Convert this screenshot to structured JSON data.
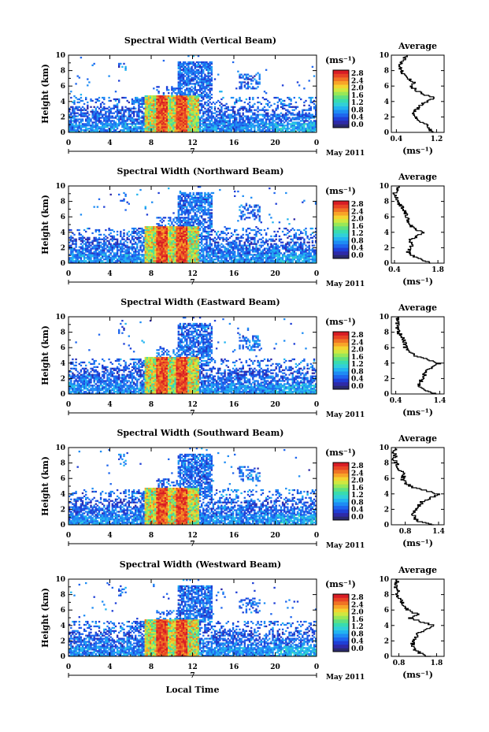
{
  "figure": {
    "x_label": "Local Time",
    "date_label": "May 2011",
    "day_label": "7",
    "height_label": "Height (km)",
    "unit_label": "(ms⁻¹)",
    "avg_title": "Average",
    "avg_unit": "(ms⁻¹)"
  },
  "colorbar": {
    "ticks": [
      "2.8",
      "2.4",
      "2.0",
      "1.6",
      "1.2",
      "0.8",
      "0.4",
      "0.0"
    ],
    "colors": [
      "#2a2a6e",
      "#2e2aa8",
      "#1f3fd6",
      "#1e66ee",
      "#1e8cf4",
      "#22b4f0",
      "#30d0d8",
      "#38dcb0",
      "#60e080",
      "#98e858",
      "#d0e840",
      "#f4d430",
      "#f8a428",
      "#f07424",
      "#e84424",
      "#d81c24"
    ],
    "scale_max": 2.8
  },
  "chart_data": [
    {
      "type": "heatmap",
      "title": "Spectral Width (Vertical Beam)",
      "x_ticks": [
        "0",
        "4",
        "8",
        "12",
        "16",
        "20",
        "0"
      ],
      "xlim": [
        0,
        24
      ],
      "y_ticks": [
        "0",
        "2",
        "4",
        "6",
        "8",
        "10"
      ],
      "ylim": [
        0,
        10
      ],
      "value_range": [
        0.0,
        2.8
      ],
      "average_profile": {
        "x_ticks": [
          "0.4",
          "1.2"
        ],
        "x_tick_values": [
          0.4,
          1.2
        ],
        "xlim": [
          0.3,
          1.35
        ],
        "heights": [
          0,
          0.5,
          1,
          1.5,
          2,
          2.5,
          3,
          3.5,
          4,
          4.5,
          5,
          5.5,
          6,
          6.5,
          7,
          7.5,
          8,
          8.5,
          9,
          9.5,
          10
        ],
        "values": [
          1.15,
          1.05,
          1.0,
          0.85,
          0.8,
          0.75,
          0.8,
          0.85,
          1.0,
          1.15,
          0.95,
          0.8,
          0.7,
          0.75,
          0.65,
          0.55,
          0.5,
          0.48,
          0.5,
          0.55,
          0.6
        ]
      }
    },
    {
      "type": "heatmap",
      "title": "Spectral Width (Northward Beam)",
      "x_ticks": [
        "0",
        "4",
        "8",
        "12",
        "16",
        "20",
        "0"
      ],
      "xlim": [
        0,
        24
      ],
      "y_ticks": [
        "0",
        "2",
        "4",
        "6",
        "8",
        "10"
      ],
      "ylim": [
        0,
        10
      ],
      "value_range": [
        0.0,
        2.8
      ],
      "average_profile": {
        "x_ticks": [
          "0.4",
          "1.8"
        ],
        "x_tick_values": [
          0.4,
          1.8
        ],
        "xlim": [
          0.3,
          2.0
        ],
        "heights": [
          0,
          0.5,
          1,
          1.5,
          2,
          2.5,
          3,
          3.5,
          4,
          4.5,
          5,
          5.5,
          6,
          6.5,
          7,
          7.5,
          8,
          8.5,
          9,
          9.5,
          10
        ],
        "values": [
          1.6,
          1.3,
          1.0,
          0.85,
          0.9,
          0.95,
          0.9,
          1.1,
          1.3,
          1.05,
          0.9,
          0.85,
          0.8,
          0.75,
          0.7,
          0.6,
          0.5,
          0.45,
          0.4,
          0.5,
          0.55
        ]
      }
    },
    {
      "type": "heatmap",
      "title": "Spectral Width (Eastward Beam)",
      "x_ticks": [
        "0",
        "4",
        "8",
        "12",
        "16",
        "20",
        "0"
      ],
      "xlim": [
        0,
        24
      ],
      "y_ticks": [
        "0",
        "2",
        "4",
        "6",
        "8",
        "10"
      ],
      "ylim": [
        0,
        10
      ],
      "value_range": [
        0.0,
        2.8
      ],
      "average_profile": {
        "x_ticks": [
          "0.4",
          "1.4"
        ],
        "x_tick_values": [
          0.4,
          1.4
        ],
        "xlim": [
          0.3,
          1.5
        ],
        "heights": [
          0,
          0.5,
          1,
          1.5,
          2,
          2.5,
          3,
          3.5,
          4,
          4.5,
          5,
          5.5,
          6,
          6.5,
          7,
          7.5,
          8,
          8.5,
          9,
          9.5,
          10
        ],
        "values": [
          1.3,
          1.1,
          0.95,
          0.95,
          1.0,
          1.05,
          1.1,
          1.25,
          1.38,
          1.15,
          0.85,
          0.72,
          0.62,
          0.62,
          0.58,
          0.52,
          0.47,
          0.45,
          0.45,
          0.42,
          0.45
        ]
      }
    },
    {
      "type": "heatmap",
      "title": "Spectral Width (Southward Beam)",
      "x_ticks": [
        "0",
        "4",
        "8",
        "12",
        "16",
        "20",
        "0"
      ],
      "xlim": [
        0,
        24
      ],
      "y_ticks": [
        "0",
        "2",
        "4",
        "6",
        "8",
        "10"
      ],
      "ylim": [
        0,
        10
      ],
      "value_range": [
        0.0,
        2.8
      ],
      "average_profile": {
        "x_ticks": [
          "0.8",
          "1.4"
        ],
        "x_tick_values": [
          0.8,
          1.4
        ],
        "xlim": [
          0.55,
          1.5
        ],
        "heights": [
          0,
          0.5,
          1,
          1.5,
          2,
          2.5,
          3,
          3.5,
          4,
          4.5,
          5,
          5.5,
          6,
          6.5,
          7,
          7.5,
          8,
          8.5,
          9,
          9.5,
          10
        ],
        "values": [
          1.3,
          1.05,
          0.95,
          0.95,
          1.0,
          1.05,
          1.1,
          1.25,
          1.4,
          1.15,
          0.9,
          0.8,
          0.75,
          0.78,
          0.72,
          0.68,
          0.64,
          0.6,
          0.62,
          0.6,
          0.65
        ]
      }
    },
    {
      "type": "heatmap",
      "title": "Spectral Width (Westward Beam)",
      "x_ticks": [
        "0",
        "4",
        "8",
        "12",
        "16",
        "20",
        "0"
      ],
      "xlim": [
        0,
        24
      ],
      "y_ticks": [
        "0",
        "2",
        "4",
        "6",
        "8",
        "10"
      ],
      "ylim": [
        0,
        10
      ],
      "value_range": [
        0.0,
        2.8
      ],
      "average_profile": {
        "x_ticks": [
          "0.8",
          "1.8"
        ],
        "x_tick_values": [
          0.8,
          1.8
        ],
        "xlim": [
          0.6,
          2.0
        ],
        "heights": [
          0,
          0.5,
          1,
          1.5,
          2,
          2.5,
          3,
          3.5,
          4,
          4.5,
          5,
          5.5,
          6,
          6.5,
          7,
          7.5,
          8,
          8.5,
          9,
          9.5,
          10
        ],
        "values": [
          1.6,
          1.35,
          1.2,
          1.15,
          1.2,
          1.25,
          1.3,
          1.5,
          1.75,
          1.4,
          1.1,
          1.3,
          1.05,
          0.95,
          0.9,
          0.82,
          0.75,
          0.8,
          0.7,
          0.75,
          0.78
        ]
      }
    }
  ]
}
